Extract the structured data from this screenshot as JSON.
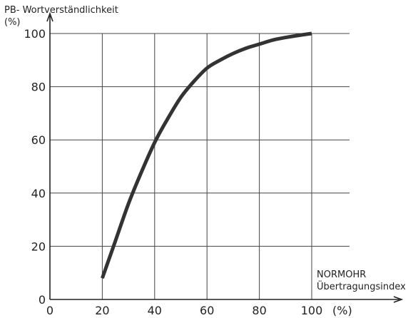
{
  "chart_data": {
    "type": "line",
    "ylabel": "PB- Wortverständlichkeit",
    "ylabel_unit": "(%)",
    "xlabel_line1": "NORMOHR",
    "xlabel_line2": "Übertragungsindex",
    "x_unit": "(%)",
    "xlim": [
      0,
      100
    ],
    "ylim": [
      0,
      100
    ],
    "x_ticks": [
      "0",
      "20",
      "40",
      "60",
      "80",
      "100"
    ],
    "y_ticks": [
      "0",
      "20",
      "40",
      "60",
      "80",
      "100"
    ],
    "grid": true,
    "legend": "none",
    "series": [
      {
        "x": [
          20,
          25,
          30,
          35,
          40,
          45,
          50,
          55,
          60,
          65,
          70,
          75,
          80,
          85,
          90,
          95,
          100
        ],
        "values": [
          8,
          22,
          36,
          48,
          59,
          68,
          76,
          82,
          87,
          90,
          92.5,
          94.5,
          96,
          97.5,
          98.5,
          99.3,
          100
        ]
      }
    ],
    "colors": {
      "line": "#333333",
      "grid": "#444444",
      "text": "#222222"
    }
  }
}
